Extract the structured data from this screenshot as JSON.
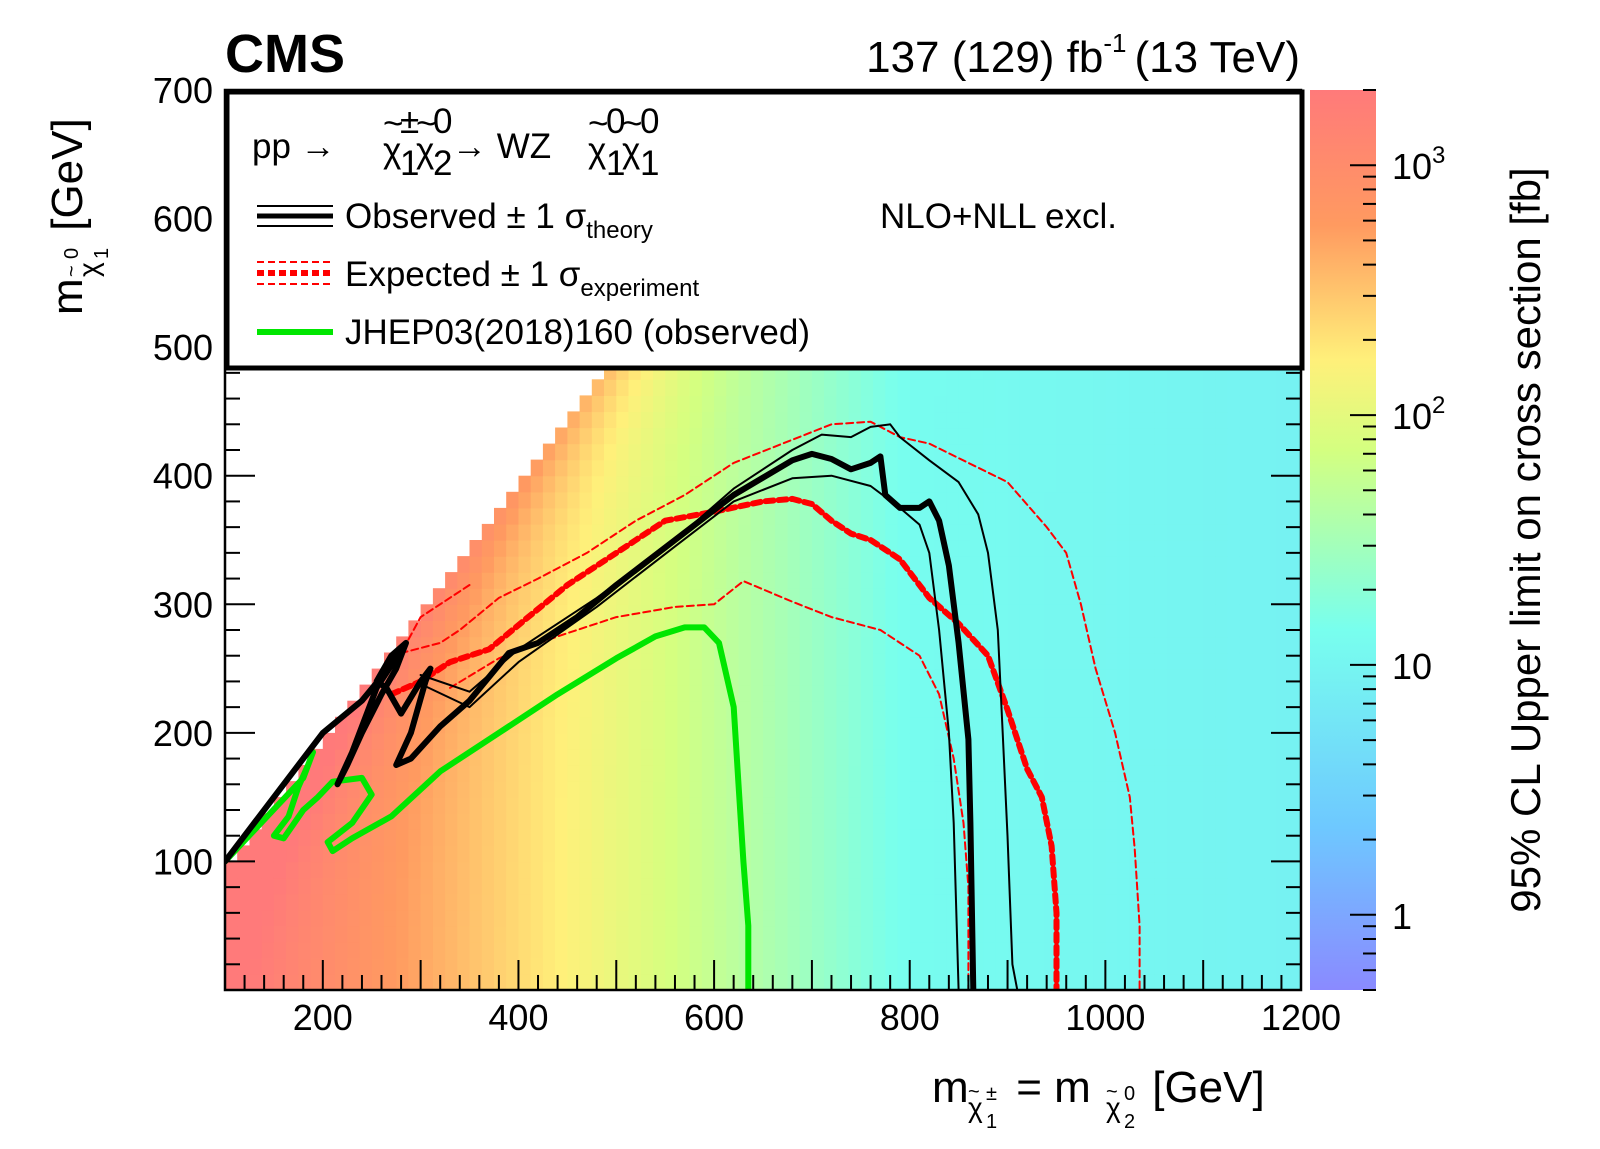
{
  "chart_data": {
    "type": "heatmap",
    "experiment_label": "CMS",
    "lumi_label": {
      "main": "137 (129) fb",
      "sup": "-1",
      "energy": "(13 TeV)"
    },
    "xlabel": {
      "m": "m",
      "sub1": "χ",
      "sub1_sup": "±",
      "sub1_sub": "1",
      "eq": " = m",
      "sub2": "χ",
      "sub2_sup": "0",
      "sub2_sub": "2",
      "unit": " [GeV]"
    },
    "ylabel": {
      "m": "m",
      "sub": "χ",
      "sub_sup": "0",
      "sub_sub": "1",
      "unit": " [GeV]"
    },
    "zlabel": "95% CL Upper limit on cross section [fb]",
    "xlim": [
      100,
      1200
    ],
    "ylim": [
      0,
      700
    ],
    "zlim": [
      0.5,
      2000
    ],
    "z_scale": "log",
    "x_ticks": [
      200,
      400,
      600,
      800,
      1000,
      1200
    ],
    "y_ticks": [
      100,
      200,
      300,
      400,
      500,
      600,
      700
    ],
    "z_ticks": [
      {
        "value": 1,
        "label": "1"
      },
      {
        "value": 10,
        "label": "10"
      },
      {
        "value": 100,
        "label": "10",
        "sup": "2"
      },
      {
        "value": 1000,
        "label": "10",
        "sup": "3"
      }
    ],
    "legend": {
      "process": {
        "pp": "pp →",
        "mid": "→ WZ"
      },
      "nlo_label": "NLO+NLL excl.",
      "entries": [
        {
          "text": "Observed ± 1 σ",
          "sub": "theory",
          "color": "#000000"
        },
        {
          "text": "Expected ± 1 σ",
          "sub": "experiment",
          "color": "#ff0000"
        },
        {
          "text": "JHEP03(2018)160 (observed)",
          "sub": "",
          "color": "#00e600"
        }
      ]
    },
    "colors": {
      "observed": "#000000",
      "expected": "#ff0000",
      "jhep": "#00e600"
    },
    "heatmap_note": "limit rises toward low mass and the diagonal",
    "series": [
      {
        "name": "Observed",
        "style": "solid-thick",
        "points": [
          [
            100,
            100
          ],
          [
            200,
            200
          ],
          [
            240,
            225
          ],
          [
            280,
            262
          ],
          [
            285,
            270
          ],
          [
            275,
            250
          ],
          [
            260,
            230
          ],
          [
            240,
            200
          ],
          [
            225,
            175
          ],
          [
            215,
            160
          ],
          [
            230,
            185
          ],
          [
            255,
            235
          ],
          [
            285,
            270
          ],
          [
            270,
            260
          ],
          [
            255,
            240
          ],
          [
            265,
            235
          ],
          [
            280,
            215
          ],
          [
            300,
            240
          ],
          [
            310,
            250
          ],
          [
            305,
            240
          ],
          [
            290,
            200
          ],
          [
            275,
            175
          ],
          [
            290,
            180
          ],
          [
            320,
            205
          ],
          [
            350,
            225
          ],
          [
            390,
            262
          ],
          [
            420,
            270
          ],
          [
            460,
            290
          ],
          [
            500,
            315
          ],
          [
            560,
            350
          ],
          [
            620,
            385
          ],
          [
            680,
            412
          ],
          [
            700,
            417
          ],
          [
            720,
            413
          ],
          [
            740,
            405
          ],
          [
            760,
            410
          ],
          [
            770,
            415
          ],
          [
            775,
            385
          ],
          [
            790,
            375
          ],
          [
            810,
            375
          ],
          [
            820,
            380
          ],
          [
            830,
            365
          ],
          [
            840,
            330
          ],
          [
            850,
            270
          ],
          [
            860,
            195
          ],
          [
            862,
            130
          ],
          [
            865,
            0
          ]
        ]
      },
      {
        "name": "Observed +1σ theory",
        "style": "solid-thin",
        "points": [
          [
            300,
            245
          ],
          [
            350,
            232
          ],
          [
            400,
            265
          ],
          [
            480,
            305
          ],
          [
            560,
            350
          ],
          [
            620,
            390
          ],
          [
            680,
            420
          ],
          [
            710,
            432
          ],
          [
            740,
            430
          ],
          [
            760,
            438
          ],
          [
            780,
            440
          ],
          [
            790,
            430
          ],
          [
            820,
            412
          ],
          [
            850,
            395
          ],
          [
            870,
            370
          ],
          [
            880,
            340
          ],
          [
            890,
            280
          ],
          [
            895,
            200
          ],
          [
            900,
            120
          ],
          [
            905,
            20
          ],
          [
            910,
            0
          ]
        ]
      },
      {
        "name": "Observed -1σ theory",
        "style": "solid-thin",
        "points": [
          [
            300,
            238
          ],
          [
            350,
            220
          ],
          [
            400,
            255
          ],
          [
            480,
            298
          ],
          [
            560,
            345
          ],
          [
            620,
            380
          ],
          [
            680,
            398
          ],
          [
            720,
            400
          ],
          [
            760,
            392
          ],
          [
            790,
            375
          ],
          [
            810,
            362
          ],
          [
            820,
            340
          ],
          [
            830,
            280
          ],
          [
            840,
            200
          ],
          [
            845,
            130
          ],
          [
            850,
            0
          ]
        ]
      },
      {
        "name": "Expected",
        "style": "dashed-thick",
        "points": [
          [
            270,
            230
          ],
          [
            300,
            240
          ],
          [
            330,
            255
          ],
          [
            370,
            265
          ],
          [
            410,
            290
          ],
          [
            450,
            315
          ],
          [
            500,
            340
          ],
          [
            550,
            365
          ],
          [
            600,
            372
          ],
          [
            650,
            380
          ],
          [
            680,
            382
          ],
          [
            700,
            378
          ],
          [
            720,
            365
          ],
          [
            740,
            355
          ],
          [
            760,
            350
          ],
          [
            790,
            335
          ],
          [
            820,
            305
          ],
          [
            850,
            285
          ],
          [
            880,
            260
          ],
          [
            900,
            218
          ],
          [
            910,
            195
          ],
          [
            920,
            172
          ],
          [
            935,
            150
          ],
          [
            945,
            112
          ],
          [
            950,
            60
          ],
          [
            950,
            0
          ]
        ]
      },
      {
        "name": "Expected +1σ experiment",
        "style": "dashed-thin",
        "points": [
          [
            350,
            315
          ],
          [
            300,
            290
          ],
          [
            280,
            262
          ],
          [
            320,
            270
          ],
          [
            340,
            280
          ],
          [
            380,
            305
          ],
          [
            420,
            320
          ],
          [
            470,
            340
          ],
          [
            520,
            365
          ],
          [
            570,
            385
          ],
          [
            620,
            410
          ],
          [
            670,
            425
          ],
          [
            720,
            440
          ],
          [
            760,
            442
          ],
          [
            790,
            430
          ],
          [
            820,
            425
          ],
          [
            860,
            410
          ],
          [
            900,
            395
          ],
          [
            940,
            360
          ],
          [
            960,
            340
          ],
          [
            975,
            300
          ],
          [
            990,
            250
          ],
          [
            1010,
            200
          ],
          [
            1025,
            150
          ],
          [
            1030,
            110
          ],
          [
            1035,
            50
          ],
          [
            1035,
            0
          ]
        ]
      },
      {
        "name": "Expected -1σ experiment",
        "style": "dashed-thin",
        "points": [
          [
            330,
            235
          ],
          [
            380,
            258
          ],
          [
            440,
            275
          ],
          [
            500,
            290
          ],
          [
            560,
            298
          ],
          [
            600,
            300
          ],
          [
            630,
            318
          ],
          [
            680,
            302
          ],
          [
            720,
            290
          ],
          [
            770,
            280
          ],
          [
            810,
            260
          ],
          [
            830,
            230
          ],
          [
            845,
            180
          ],
          [
            855,
            130
          ],
          [
            860,
            80
          ],
          [
            860,
            0
          ]
        ]
      },
      {
        "name": "JHEP03(2018)160 (observed)",
        "style": "solid-green",
        "points": [
          [
            100,
            100
          ],
          [
            180,
            165
          ],
          [
            190,
            185
          ],
          [
            185,
            175
          ],
          [
            175,
            158
          ],
          [
            165,
            135
          ],
          [
            150,
            120
          ],
          [
            160,
            118
          ],
          [
            180,
            140
          ],
          [
            195,
            150
          ],
          [
            210,
            162
          ],
          [
            240,
            165
          ],
          [
            250,
            152
          ],
          [
            230,
            130
          ],
          [
            205,
            115
          ],
          [
            210,
            108
          ],
          [
            230,
            118
          ],
          [
            270,
            135
          ],
          [
            320,
            170
          ],
          [
            380,
            200
          ],
          [
            440,
            230
          ],
          [
            500,
            258
          ],
          [
            540,
            275
          ],
          [
            570,
            282
          ],
          [
            590,
            282
          ],
          [
            605,
            270
          ],
          [
            620,
            220
          ],
          [
            625,
            160
          ],
          [
            630,
            100
          ],
          [
            635,
            50
          ],
          [
            635,
            0
          ]
        ]
      }
    ]
  }
}
